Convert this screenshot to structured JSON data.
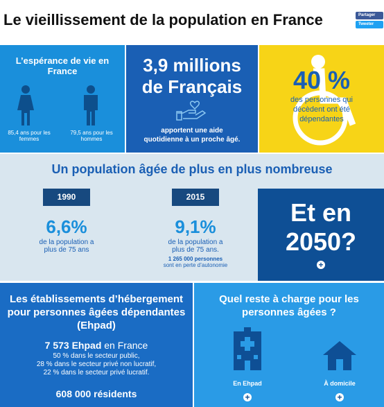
{
  "header": {
    "title": "Le vieillissement de la population en France",
    "buttons": [
      "Partager",
      "Tweeter"
    ]
  },
  "panels": {
    "life_expectancy": {
      "title": "L’espérance de vie en France",
      "women": "85,4 ans pour les femmes",
      "men": "79,5 ans pour les hommes"
    },
    "caregivers": {
      "headline": "3,9 millions de Français",
      "text": "apportent une aide quotidienne à un proche âgé."
    },
    "dependency": {
      "headline": "40 %",
      "text": "des personnes qui décèdent ont été dépendantes"
    }
  },
  "population": {
    "title": "Un population âgée de plus en plus nombreuse",
    "years": [
      {
        "year": "1990",
        "share": "6,6%",
        "text": "de la population a plus de 75 ans"
      },
      {
        "year": "2015",
        "share": "9,1%",
        "text": "de la population a plus de 75 ans.",
        "note_strong": "1 265 000 personnes",
        "note": "sont en perte d’autonomie"
      }
    ],
    "future": "Et en 2050?"
  },
  "ehpad": {
    "title": "Les établissements d’hébergement pour personnes âgées dépendantes (Ehpad)",
    "count_strong": "7 573 Ehpad",
    "count_rest": "en France",
    "breakdown": [
      "50 % dans le secteur public,",
      "28 % dans le secteur privé non lucratif,",
      "22 % dans le secteur privé lucratif."
    ],
    "residents": "608 000 résidents"
  },
  "cost": {
    "title": "Quel reste à charge pour les personnes âgées ?",
    "options": [
      "En Ehpad",
      "À domicile"
    ]
  }
}
